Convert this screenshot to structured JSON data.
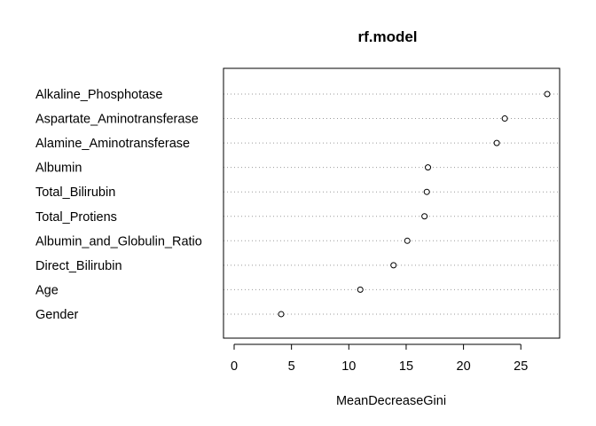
{
  "chart_data": {
    "type": "scatter",
    "subtype": "dotchart",
    "title": "rf.model",
    "xlabel": "MeanDecreaseGini",
    "ylabel": "",
    "xlim": [
      0,
      27.4
    ],
    "xticks": [
      0,
      5,
      10,
      15,
      20,
      25
    ],
    "grid": "dotted horizontal lines per category",
    "categories": [
      "Alkaline_Phosphotase",
      "Aspartate_Aminotransferase",
      "Alamine_Aminotransferase",
      "Albumin",
      "Total_Bilirubin",
      "Total_Protiens",
      "Albumin_and_Globulin_Ratio",
      "Direct_Bilirubin",
      "Age",
      "Gender"
    ],
    "values": [
      27.3,
      23.6,
      22.9,
      16.9,
      16.8,
      16.6,
      15.1,
      13.9,
      11.0,
      4.1
    ]
  }
}
